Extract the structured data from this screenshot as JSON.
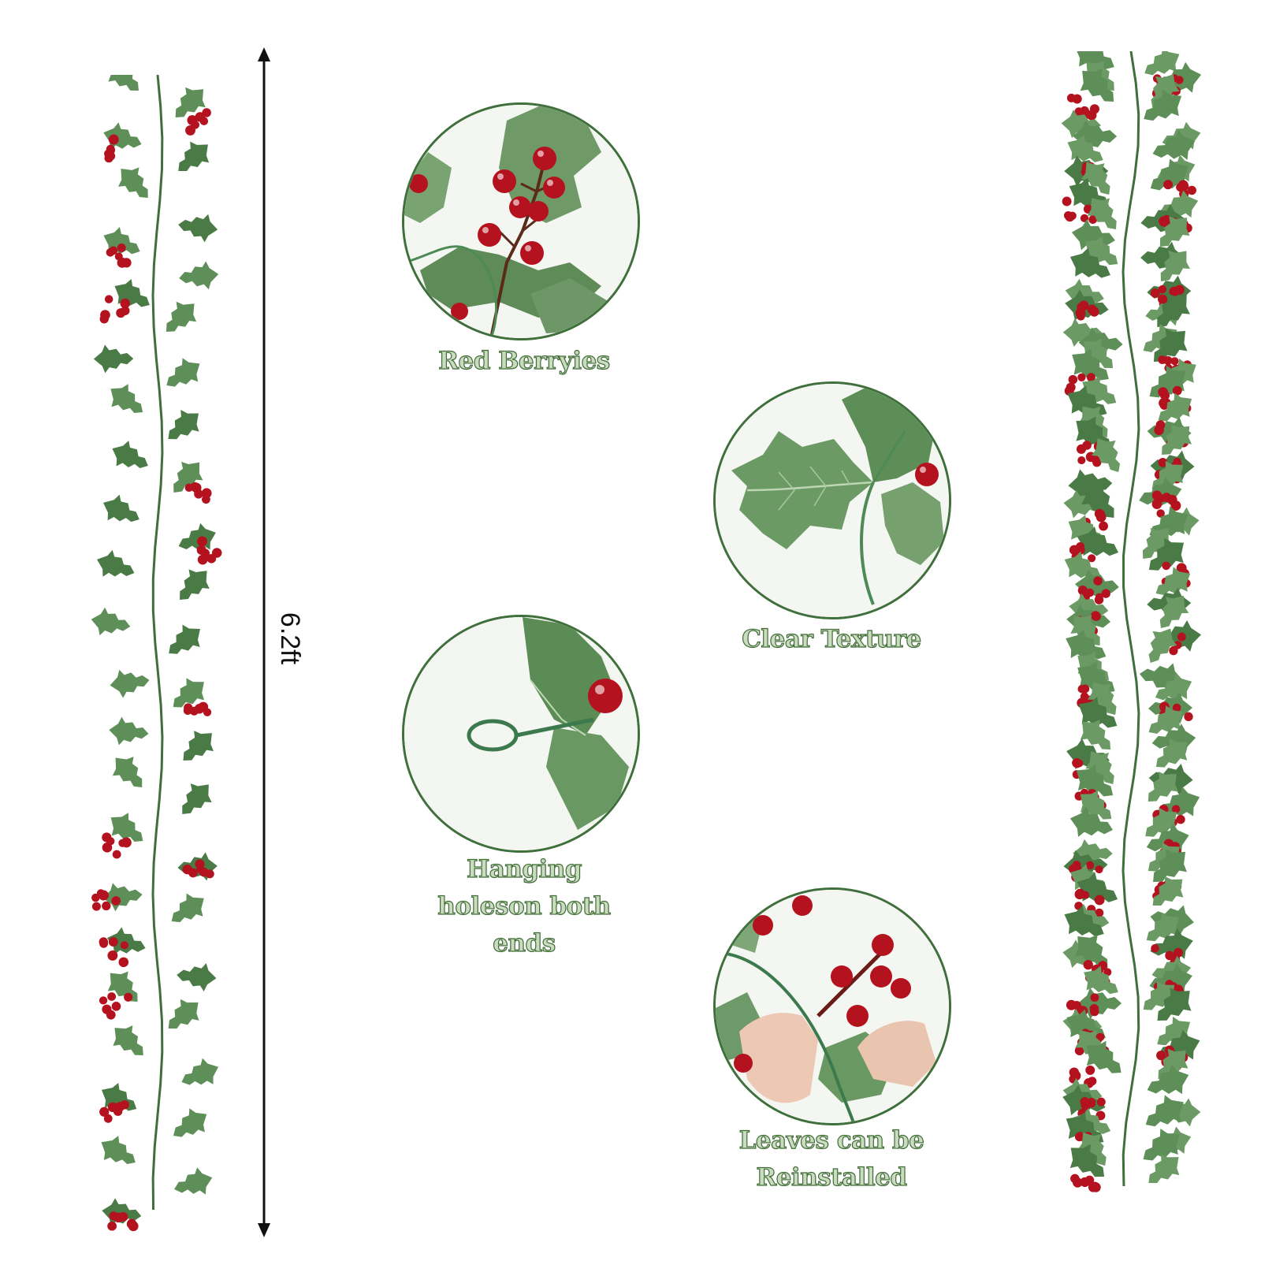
{
  "measurement": {
    "length_label": "6.2ft"
  },
  "features": [
    {
      "label": "Red Berryies"
    },
    {
      "label": "Clear Texture"
    },
    {
      "label": "Hanging holeson both ends"
    },
    {
      "label": "Leaves can be Reinstalled"
    }
  ],
  "colors": {
    "leaf": "#4a7a45",
    "berry": "#b3121e",
    "label_fill": "#c9dcbf",
    "label_outline": "#3f6b35",
    "circle_border": "#3f6f3a"
  },
  "icons": [
    "length-arrow-icon"
  ]
}
